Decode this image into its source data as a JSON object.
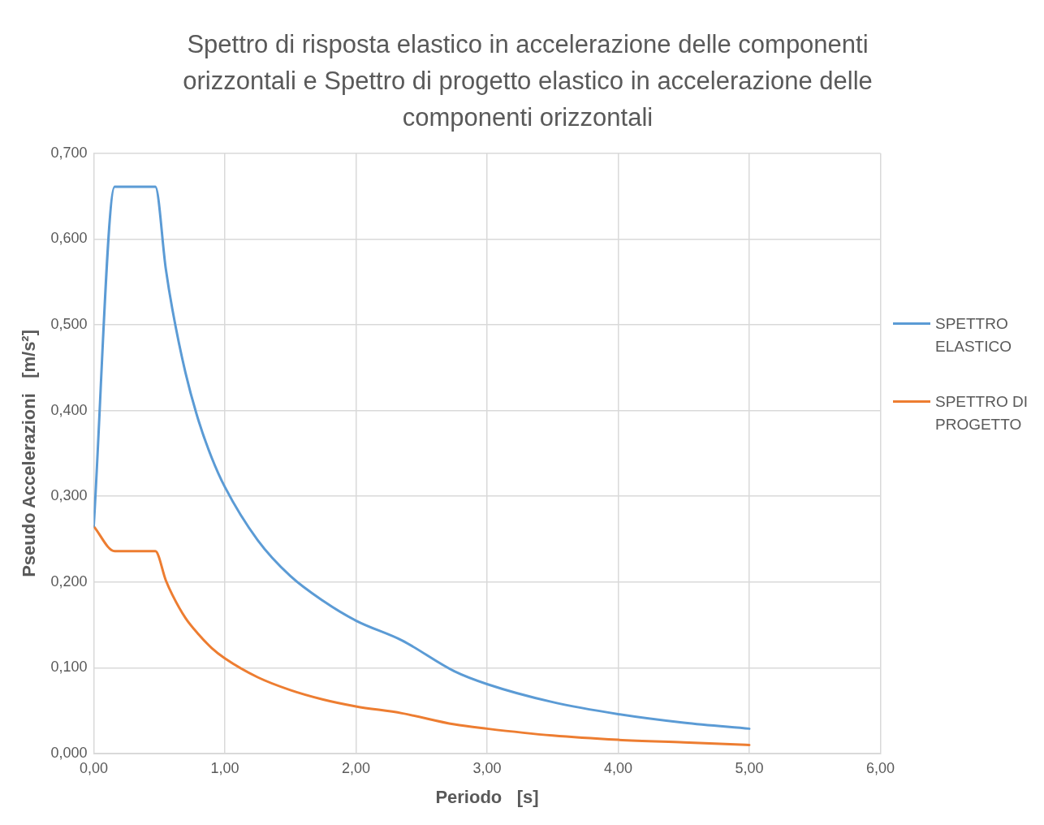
{
  "chart_data": {
    "type": "line",
    "title": "Spettro di risposta elastico in accelerazione delle componenti orizzontali e Spettro di progetto elastico in accelerazione delle componenti orizzontali",
    "xlabel": "Periodo   [s]",
    "ylabel": "Pseudo Accelerazioni   [m/s²]",
    "x": [
      0,
      0.16,
      0.47,
      0.55,
      0.6,
      0.7,
      0.8,
      0.9,
      1.0,
      1.25,
      1.5,
      1.75,
      2.0,
      2.35,
      2.75,
      3.0,
      3.5,
      4.0,
      4.5,
      5.0
    ],
    "series": [
      {
        "name": "SPETTRO ELASTICO",
        "color": "#5b9bd5",
        "values": [
          0.265,
          0.661,
          0.661,
          0.565,
          0.518,
          0.444,
          0.388,
          0.345,
          0.311,
          0.249,
          0.207,
          0.178,
          0.155,
          0.132,
          0.096,
          0.081,
          0.06,
          0.046,
          0.036,
          0.029
        ]
      },
      {
        "name": "SPETTRO DI PROGETTO",
        "color": "#ed7d31",
        "values": [
          0.265,
          0.236,
          0.236,
          0.202,
          0.185,
          0.158,
          0.139,
          0.123,
          0.111,
          0.089,
          0.074,
          0.063,
          0.055,
          0.047,
          0.034,
          0.029,
          0.021,
          0.016,
          0.013,
          0.01
        ]
      }
    ],
    "xlim": [
      0,
      6
    ],
    "xticks": [
      {
        "value": 0,
        "label": "0,00"
      },
      {
        "value": 1,
        "label": "1,00"
      },
      {
        "value": 2,
        "label": "2,00"
      },
      {
        "value": 3,
        "label": "3,00"
      },
      {
        "value": 4,
        "label": "4,00"
      },
      {
        "value": 5,
        "label": "5,00"
      },
      {
        "value": 6,
        "label": "6,00"
      }
    ],
    "ylim": [
      0,
      0.7
    ],
    "yticks": [
      {
        "value": 0,
        "label": "0,000"
      },
      {
        "value": 0.1,
        "label": "0,100"
      },
      {
        "value": 0.2,
        "label": "0,200"
      },
      {
        "value": 0.3,
        "label": "0,300"
      },
      {
        "value": 0.4,
        "label": "0,400"
      },
      {
        "value": 0.5,
        "label": "0,500"
      },
      {
        "value": 0.6,
        "label": "0,600"
      },
      {
        "value": 0.7,
        "label": "0,700"
      }
    ],
    "grid": true,
    "legend": "right",
    "marker": "none",
    "line_style": "solid"
  }
}
